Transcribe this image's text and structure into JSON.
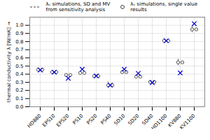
{
  "chart_data": {
    "type": "errorbar",
    "categories": [
      "HD880",
      "EPS10",
      "EPS20",
      "PS10",
      "PS20",
      "PS40",
      "SD10",
      "SD20",
      "SD40",
      "HD1100",
      "KV880",
      "KV1100"
    ],
    "ylabel": "thermal conductivity λ [W/mK]",
    "ylim": [
      0.0,
      1.1
    ],
    "yticks": [
      {
        "value": 0.0,
        "label": "0.0"
      },
      0.1,
      0.2,
      0.3,
      0.4,
      0.5,
      0.6,
      0.7,
      0.8,
      0.9,
      {
        "value": 1.0,
        "label": "1.0"
      }
    ],
    "grid": true,
    "legend": "upper left",
    "series": [
      {
        "name": "  λₛ simulations, SD and MV\n  from sensitivity analysis",
        "color": "#444444",
        "marker": "o",
        "line_style": "dashed",
        "values": [
          0.455,
          0.425,
          0.39,
          0.415,
          0.375,
          0.265,
          0.425,
          0.37,
          0.305,
          0.81,
          0.545,
          0.95
        ],
        "err_low": [
          0.025,
          0.02,
          0.018,
          0.02,
          0.018,
          0.04,
          0.02,
          0.02,
          0.02,
          0.03,
          0.04,
          0.04
        ],
        "err_high": [
          0.025,
          0.02,
          0.018,
          0.02,
          0.018,
          0.04,
          0.02,
          0.02,
          0.02,
          0.03,
          0.04,
          0.04
        ]
      },
      {
        "name": "λₛ simulations, single value\nresults",
        "color": "#444444",
        "marker": "o",
        "values": [
          0.455,
          0.425,
          0.39,
          0.415,
          0.375,
          0.265,
          0.425,
          0.37,
          0.305,
          0.81,
          0.545,
          0.95
        ],
        "err_low": [
          0.01,
          0.008,
          0.007,
          0.008,
          0.007,
          0.01,
          0.008,
          0.008,
          0.008,
          0.012,
          0.015,
          0.015
        ],
        "err_high": [
          0.01,
          0.008,
          0.007,
          0.008,
          0.007,
          0.01,
          0.008,
          0.008,
          0.008,
          0.012,
          0.015,
          0.015
        ]
      },
      {
        "color": "#0000cc",
        "marker": "x",
        "values": [
          0.45,
          0.425,
          0.35,
          0.46,
          0.38,
          0.265,
          0.46,
          0.41,
          0.295,
          0.81,
          0.415,
          1.02
        ]
      }
    ]
  }
}
